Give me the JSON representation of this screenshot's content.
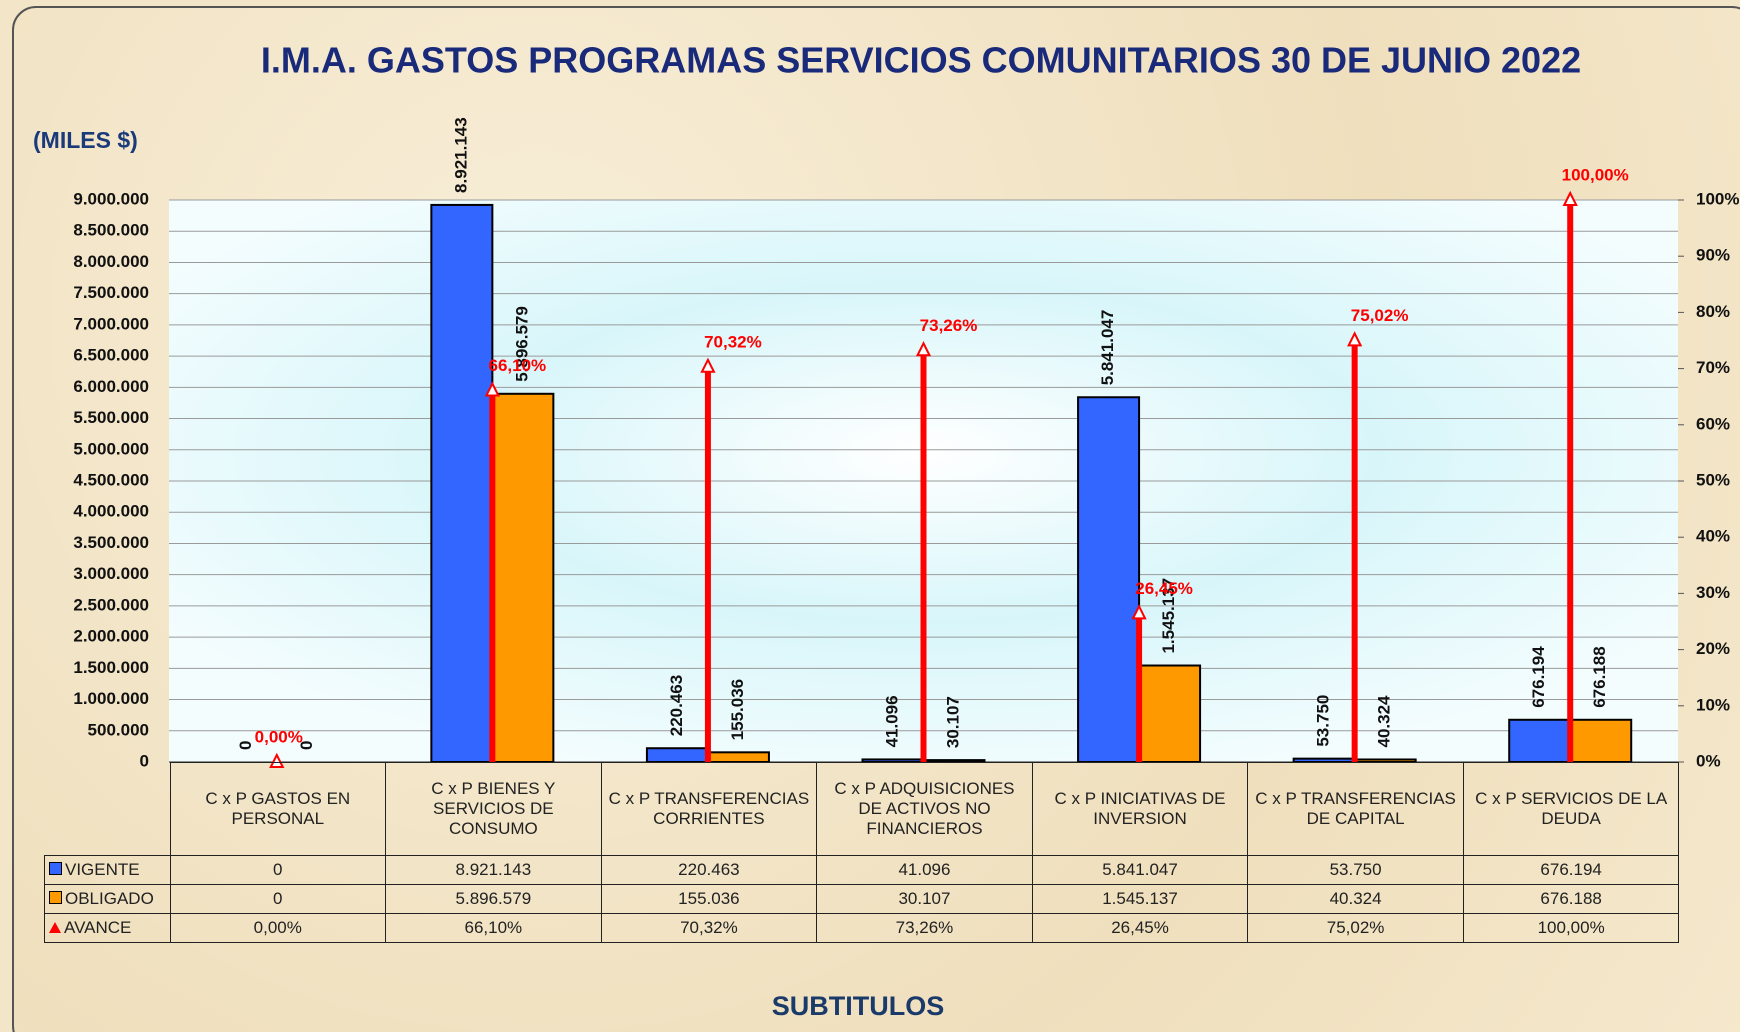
{
  "chart_data": {
    "type": "bar",
    "title": "I.M.A. GASTOS PROGRAMAS SERVICIOS COMUNITARIOS  30 DE JUNIO 2022",
    "y_label": "(MILES $)",
    "x_label": "SUBTITULOS",
    "categories": [
      "C x P GASTOS EN PERSONAL",
      "C x P BIENES Y SERVICIOS DE CONSUMO",
      "C x P TRANSFERENCIAS CORRIENTES",
      "C x P ADQUISICIONES DE ACTIVOS NO FINANCIEROS",
      "C x P INICIATIVAS DE INVERSION",
      "C x P TRANSFERENCIAS DE CAPITAL",
      "C x P SERVICIOS DE LA DEUDA"
    ],
    "series": [
      {
        "name": "VIGENTE",
        "color": "#3366ff",
        "values": [
          0,
          8921143,
          220463,
          41096,
          5841047,
          53750,
          676194
        ],
        "value_labels": [
          "0",
          "8.921.143",
          "220.463",
          "41.096",
          "5.841.047",
          "53.750",
          "676.194"
        ]
      },
      {
        "name": "OBLIGADO",
        "color": "#ff9900",
        "values": [
          0,
          5896579,
          155036,
          30107,
          1545137,
          40324,
          676188
        ],
        "value_labels": [
          "0",
          "5.896.579",
          "155.036",
          "30.107",
          "1.545.137",
          "40.324",
          "676.188"
        ]
      },
      {
        "name": "AVANCE",
        "color": "#ff0000",
        "axis": "y2",
        "values": [
          0,
          66.1,
          70.32,
          73.26,
          26.45,
          75.02,
          100
        ],
        "value_labels": [
          "0,00%",
          "66,10%",
          "70,32%",
          "73,26%",
          "26,45%",
          "75,02%",
          "100,00%"
        ]
      }
    ],
    "ylim": [
      0,
      9000000
    ],
    "yticks": [
      0,
      {
        "value": 500000,
        "label": "500.000"
      },
      {
        "value": 1000000,
        "label": "1.000.000"
      },
      {
        "value": 1500000,
        "label": "1.500.000"
      },
      {
        "value": 2000000,
        "label": "2.000.000"
      },
      {
        "value": 2500000,
        "label": "2.500.000"
      },
      {
        "value": 3000000,
        "label": "3.000.000"
      },
      {
        "value": 3500000,
        "label": "3.500.000"
      },
      {
        "value": 4000000,
        "label": "4.000.000"
      },
      {
        "value": 4500000,
        "label": "4.500.000"
      },
      {
        "value": 5000000,
        "label": "5.000.000"
      },
      {
        "value": 5500000,
        "label": "5.500.000"
      },
      {
        "value": 6000000,
        "label": "6.000.000"
      },
      {
        "value": 6500000,
        "label": "6.500.000"
      },
      {
        "value": 7000000,
        "label": "7.000.000"
      },
      {
        "value": 7500000,
        "label": "7.500.000"
      },
      {
        "value": 8000000,
        "label": "8.000.000"
      },
      {
        "value": 8500000,
        "label": "8.500.000"
      },
      {
        "value": 9000000,
        "label": "9.000.000"
      }
    ],
    "y2lim": [
      0,
      100
    ],
    "y2ticks": [
      {
        "value": 0,
        "label": "0%"
      },
      {
        "value": 10,
        "label": "10%"
      },
      {
        "value": 20,
        "label": "20%"
      },
      {
        "value": 30,
        "label": "30%"
      },
      {
        "value": 40,
        "label": "40%"
      },
      {
        "value": 50,
        "label": "50%"
      },
      {
        "value": 60,
        "label": "60%"
      },
      {
        "value": 70,
        "label": "70%"
      },
      {
        "value": 80,
        "label": "80%"
      },
      {
        "value": 90,
        "label": "90%"
      },
      {
        "value": 100,
        "label": "100%"
      }
    ],
    "grid": true
  }
}
